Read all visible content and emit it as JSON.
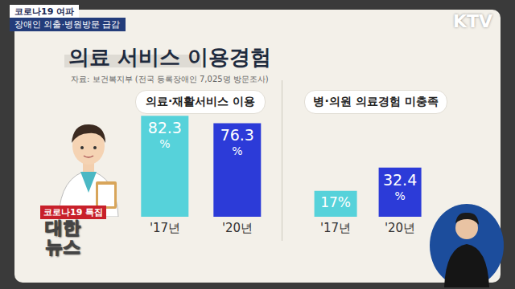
{
  "header": {
    "tag": "코로나19 여파",
    "headline": "장애인 외출·병원방문 급감",
    "channel": "KTV",
    "title": "의료 서비스 이용경험",
    "source": "자료: 보건복지부 (전국 등록장애인 7,025명 방문조사)"
  },
  "badge": {
    "special": "코로나19 특집",
    "program_lines": [
      "대한",
      "뉴스"
    ]
  },
  "chart_data": [
    {
      "type": "bar",
      "title": "의료·재활서비스 이용",
      "categories": [
        "'17년",
        "'20년"
      ],
      "values": [
        82.3,
        76.3
      ],
      "value_labels": [
        "82.3%",
        "76.3%"
      ],
      "colors": [
        "#56d2da",
        "#2c3bd8"
      ],
      "ylim": [
        0,
        93
      ],
      "tick_labels": "x",
      "data_labels": true
    },
    {
      "type": "bar",
      "title": "병·의원 의료경험 미충족",
      "categories": [
        "'17년",
        "'20년"
      ],
      "values": [
        17,
        32.4
      ],
      "value_labels": [
        "17%",
        "32.4%"
      ],
      "colors": [
        "#56d2da",
        "#2c3bd8"
      ],
      "ylim": [
        0,
        75
      ],
      "tick_labels": "x",
      "data_labels": true
    }
  ]
}
